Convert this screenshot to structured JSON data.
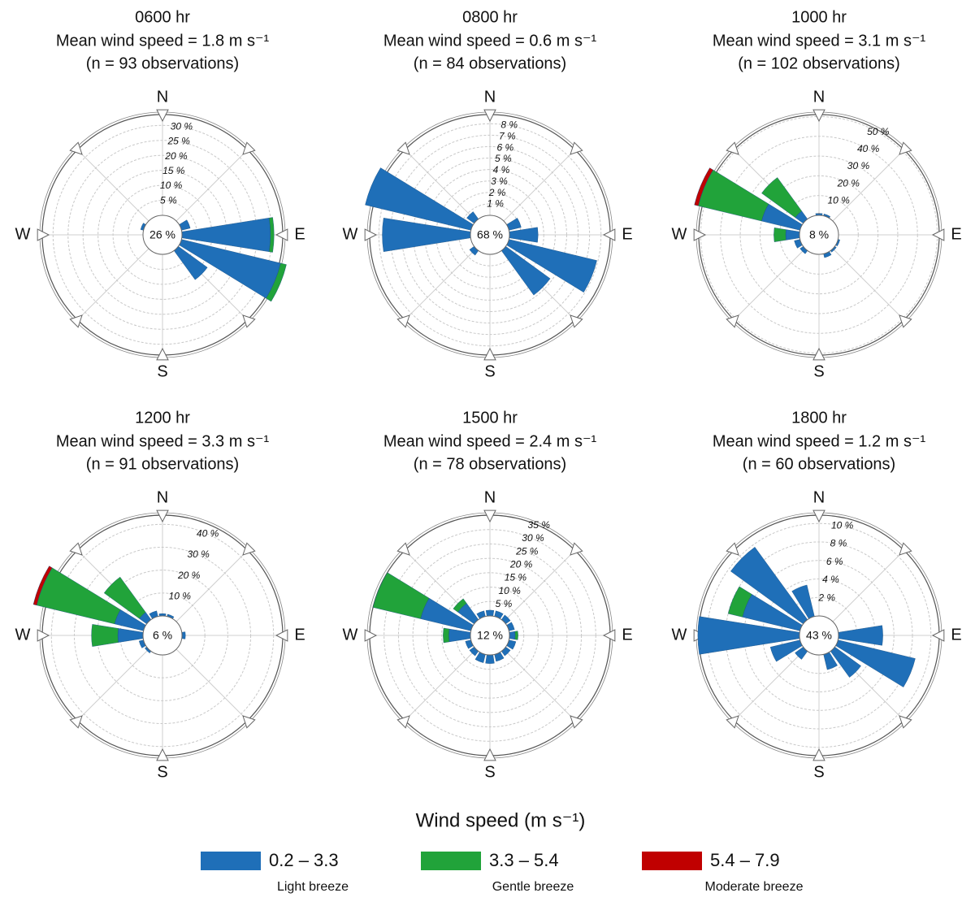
{
  "legend": {
    "title": "Wind speed (m s⁻¹)",
    "series": [
      {
        "name": "0.2 – 3.3",
        "color": "#1f6fb8",
        "description": "Light breeze"
      },
      {
        "name": "3.3 – 5.4",
        "color": "#21a33a",
        "description": "Gentle breeze"
      },
      {
        "name": "5.4 – 7.9",
        "color": "#c00000",
        "description": "Moderate breeze"
      }
    ]
  },
  "chart_data": [
    {
      "type": "wind-rose",
      "title": "0600 hr",
      "subtitle": "Mean wind speed = 1.8 m s⁻¹",
      "note": "(n = 93 observations)",
      "calm": 26,
      "calm_label": "26 %",
      "compass": [
        "N",
        "E",
        "S",
        "W"
      ],
      "categories": [
        null,
        null,
        null,
        null,
        null,
        null,
        null,
        null,
        null,
        null,
        null,
        null,
        null,
        null,
        null,
        null
      ],
      "rlim": [
        0,
        33.6
      ],
      "rticks": [
        {
          "value": 5,
          "label": "5 %"
        },
        {
          "value": 10,
          "label": "10 %"
        },
        {
          "value": 15,
          "label": "15 %"
        },
        {
          "value": 20,
          "label": "20 %"
        },
        {
          "value": 25,
          "label": "25 %"
        },
        {
          "value": 30,
          "label": "30 %"
        }
      ],
      "series": [
        {
          "values": [
            0,
            0,
            0,
            3,
            29.5,
            34,
            12,
            0,
            0,
            0,
            0,
            0,
            0,
            1,
            0,
            0
          ]
        },
        {
          "values": [
            0,
            0,
            0,
            0,
            1.2,
            2,
            0,
            0,
            0,
            0,
            0,
            0,
            0,
            0,
            0,
            0
          ]
        },
        {
          "values": [
            0,
            0,
            0,
            0,
            0,
            0,
            0,
            0,
            0,
            0,
            0,
            0,
            0,
            0,
            0,
            0
          ]
        }
      ]
    },
    {
      "type": "wind-rose",
      "title": "0800 hr",
      "subtitle": "Mean wind speed = 0.6 m s⁻¹",
      "note": "(n = 84 observations)",
      "calm": 68,
      "calm_label": "68 %",
      "compass": [
        "N",
        "E",
        "S",
        "W"
      ],
      "categories": [
        null,
        null,
        null,
        null,
        null,
        null,
        null,
        null,
        null,
        null,
        null,
        null,
        null,
        null,
        null,
        null
      ],
      "rlim": [
        0,
        8.8
      ],
      "rticks": [
        {
          "value": 1,
          "label": "1 %"
        },
        {
          "value": 2,
          "label": "2 %"
        },
        {
          "value": 3,
          "label": "3 %"
        },
        {
          "value": 4,
          "label": "4 %"
        },
        {
          "value": 5,
          "label": "5 %"
        },
        {
          "value": 6,
          "label": "6 %"
        },
        {
          "value": 7,
          "label": "7 %"
        },
        {
          "value": 8,
          "label": "8 %"
        }
      ],
      "series": [
        {
          "values": [
            0,
            0,
            0,
            1.1,
            2.5,
            7.9,
            4.8,
            0,
            0,
            0,
            0.5,
            0,
            7.7,
            9.5,
            0.8,
            0
          ]
        },
        {
          "values": [
            0,
            0,
            0,
            0,
            0,
            0,
            0,
            0,
            0,
            0,
            0,
            0,
            0,
            0,
            0,
            0
          ]
        },
        {
          "values": [
            0,
            0,
            0,
            0,
            0,
            0,
            0,
            0,
            0,
            0,
            0,
            0,
            0,
            0,
            0,
            0
          ]
        }
      ]
    },
    {
      "type": "wind-rose",
      "title": "1000 hr",
      "subtitle": "Mean wind speed = 3.1 m s⁻¹",
      "note": "(n = 102 observations)",
      "calm": 8,
      "calm_label": "8 %",
      "compass": [
        "N",
        "E",
        "S",
        "W"
      ],
      "categories": [
        null,
        null,
        null,
        null,
        null,
        null,
        null,
        null,
        null,
        null,
        null,
        null,
        null,
        null,
        null,
        null
      ],
      "rlim": [
        0,
        51
      ],
      "rticks": [
        {
          "value": 10,
          "label": "10 %"
        },
        {
          "value": 20,
          "label": "20 %"
        },
        {
          "value": 30,
          "label": "30 %"
        },
        {
          "value": 40,
          "label": "40 %"
        },
        {
          "value": 50,
          "label": "50 %"
        }
      ],
      "series": [
        {
          "values": [
            1,
            1,
            0,
            0,
            0,
            1,
            1,
            2,
            0,
            0,
            2,
            3,
            7,
            20,
            5,
            0
          ]
        },
        {
          "values": [
            0,
            0,
            0,
            0,
            0,
            0,
            0,
            0,
            0,
            0,
            0,
            0,
            6,
            33,
            21,
            0
          ]
        },
        {
          "values": [
            0,
            0,
            0,
            0,
            0,
            0,
            0,
            0,
            0,
            0,
            0,
            0,
            0,
            2,
            0,
            0
          ]
        }
      ]
    },
    {
      "type": "wind-rose",
      "title": "1200 hr",
      "subtitle": "Mean wind speed = 3.3 m s⁻¹",
      "note": "(n = 91 observations)",
      "calm": 6,
      "calm_label": "6 %",
      "compass": [
        "N",
        "E",
        "S",
        "W"
      ],
      "categories": [
        null,
        null,
        null,
        null,
        null,
        null,
        null,
        null,
        null,
        null,
        null,
        null,
        null,
        null,
        null,
        null
      ],
      "rlim": [
        0,
        44
      ],
      "rticks": [
        {
          "value": 10,
          "label": "10 %"
        },
        {
          "value": 20,
          "label": "20 %"
        },
        {
          "value": 30,
          "label": "30 %"
        },
        {
          "value": 40,
          "label": "40 %"
        }
      ],
      "series": [
        {
          "values": [
            1,
            1,
            0,
            0,
            1.5,
            0,
            0,
            0,
            0,
            0,
            1,
            2,
            11,
            13,
            4,
            2.5
          ]
        },
        {
          "values": [
            0,
            0,
            0,
            0,
            0,
            0,
            0,
            0,
            0,
            0,
            0,
            0,
            11.5,
            35,
            19,
            0
          ]
        },
        {
          "values": [
            0,
            0,
            0,
            0,
            0,
            0,
            0,
            0,
            0,
            0,
            0,
            0,
            0,
            1.5,
            0,
            0
          ]
        }
      ]
    },
    {
      "type": "wind-rose",
      "title": "1500 hr",
      "subtitle": "Mean wind speed = 2.4 m s⁻¹",
      "note": "(n = 78 observations)",
      "calm": 12,
      "calm_label": "12 %",
      "compass": [
        "N",
        "E",
        "S",
        "W"
      ],
      "categories": [
        null,
        null,
        null,
        null,
        null,
        null,
        null,
        null,
        null,
        null,
        null,
        null,
        null,
        null,
        null,
        null
      ],
      "rlim": [
        0,
        35
      ],
      "rticks": [
        {
          "value": 5,
          "label": "5 %"
        },
        {
          "value": 10,
          "label": "10 %"
        },
        {
          "value": 15,
          "label": "15 %"
        },
        {
          "value": 20,
          "label": "20 %"
        },
        {
          "value": 25,
          "label": "25 %"
        },
        {
          "value": 30,
          "label": "30 %"
        },
        {
          "value": 35,
          "label": "35 %"
        }
      ],
      "series": [
        {
          "values": [
            2,
            2,
            2,
            2,
            2,
            2.5,
            2,
            2.5,
            3,
            3,
            2,
            2,
            7.5,
            18,
            7,
            2
          ]
        },
        {
          "values": [
            0,
            0,
            0,
            0,
            1,
            0,
            0,
            0,
            0,
            0,
            0,
            0,
            2,
            17,
            2,
            0
          ]
        },
        {
          "values": [
            0,
            0,
            0,
            0,
            0,
            0,
            0,
            0,
            0,
            0,
            0,
            0,
            0,
            0,
            0,
            0
          ]
        }
      ]
    },
    {
      "type": "wind-rose",
      "title": "1800 hr",
      "subtitle": "Mean wind speed = 1.2 m s⁻¹",
      "note": "(n = 60 observations)",
      "calm": 43,
      "calm_label": "43 %",
      "compass": [
        "N",
        "E",
        "S",
        "W"
      ],
      "categories": [
        null,
        null,
        null,
        null,
        null,
        null,
        null,
        null,
        null,
        null,
        null,
        null,
        null,
        null,
        null,
        null
      ],
      "rlim": [
        0,
        10.9
      ],
      "rticks": [
        {
          "value": 2,
          "label": "2 %"
        },
        {
          "value": 4,
          "label": "4 %"
        },
        {
          "value": 6,
          "label": "6 %"
        },
        {
          "value": 8,
          "label": "8 %"
        },
        {
          "value": 10,
          "label": "10 %"
        }
      ],
      "series": [
        {
          "values": [
            0,
            0,
            0,
            0,
            4.8,
            8.6,
            3.5,
            1.7,
            0,
            0,
            1.1,
            3.3,
            11,
            6.4,
            9.7,
            3.5
          ]
        },
        {
          "values": [
            0,
            0,
            0,
            0,
            0,
            0,
            0,
            0,
            0,
            0,
            0,
            0,
            0,
            1.6,
            0,
            0
          ]
        },
        {
          "values": [
            0,
            0,
            0,
            0,
            0,
            0,
            0,
            0,
            0,
            0,
            0,
            0,
            0,
            0,
            0,
            0
          ]
        }
      ]
    }
  ]
}
